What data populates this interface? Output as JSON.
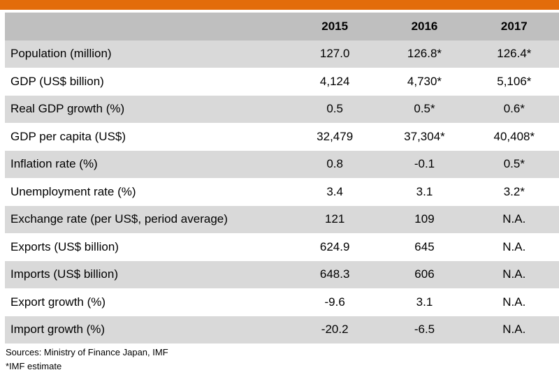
{
  "table": {
    "header": {
      "label": "",
      "years": [
        "2015",
        "2016",
        "2017"
      ]
    },
    "rows": [
      {
        "label": "Population (million)",
        "values": [
          "127.0",
          "126.8*",
          "126.4*"
        ]
      },
      {
        "label": "GDP (US$ billion)",
        "values": [
          "4,124",
          "4,730*",
          "5,106*"
        ]
      },
      {
        "label": "Real GDP growth (%)",
        "values": [
          "0.5",
          "0.5*",
          "0.6*"
        ]
      },
      {
        "label": "GDP per capita (US$)",
        "values": [
          "32,479",
          "37,304*",
          "40,408*"
        ]
      },
      {
        "label": "Inflation rate (%)",
        "values": [
          "0.8",
          "-0.1",
          "0.5*"
        ]
      },
      {
        "label": "Unemployment rate (%)",
        "values": [
          "3.4",
          "3.1",
          "3.2*"
        ]
      },
      {
        "label": "Exchange rate (per US$, period average)",
        "values": [
          "121",
          "109",
          "N.A."
        ]
      },
      {
        "label": "Exports (US$ billion)",
        "values": [
          "624.9",
          "645",
          "N.A."
        ]
      },
      {
        "label": "Imports (US$ billion)",
        "values": [
          "648.3",
          "606",
          "N.A."
        ]
      },
      {
        "label": "Export growth (%)",
        "values": [
          "-9.6",
          "3.1",
          "N.A."
        ]
      },
      {
        "label": "Import growth (%)",
        "values": [
          "-20.2",
          "-6.5",
          "N.A."
        ]
      }
    ]
  },
  "notes": {
    "sources": "Sources: Ministry of Finance Japan, IMF",
    "estimate": "*IMF estimate"
  },
  "colors": {
    "accent_bar": "#e36c0a",
    "header_bg": "#bfbfbf",
    "shaded_row_bg": "#d9d9d9"
  }
}
